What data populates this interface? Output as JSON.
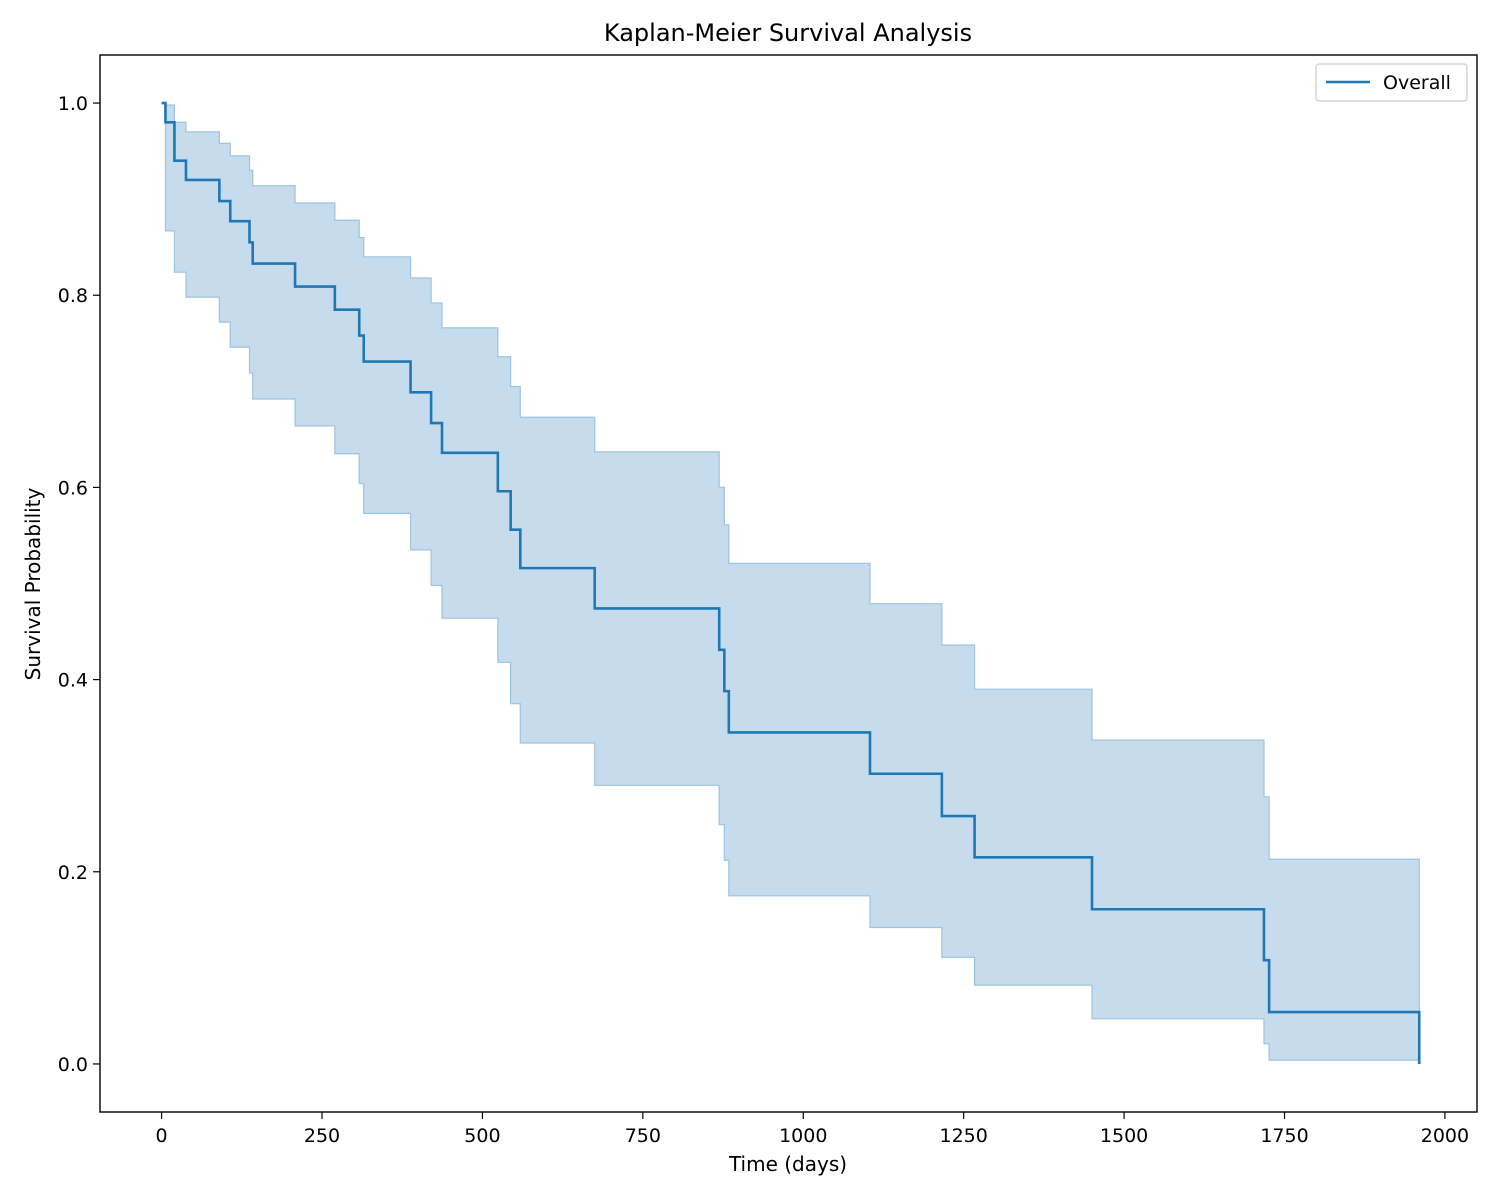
{
  "chart_data": {
    "type": "line",
    "title": "Kaplan-Meier Survival Analysis",
    "xlabel": "Time (days)",
    "ylabel": "Survival Probability",
    "xlim": [
      -96,
      2050
    ],
    "ylim": [
      -0.05,
      1.05
    ],
    "xticks": [
      0,
      250,
      500,
      750,
      1000,
      1250,
      1500,
      1750,
      2000
    ],
    "yticks": [
      0.0,
      0.2,
      0.4,
      0.6,
      0.8,
      1.0
    ],
    "xtick_labels": [
      "0",
      "250",
      "500",
      "750",
      "1000",
      "1250",
      "1500",
      "1750",
      "2000"
    ],
    "ytick_labels": [
      "0.0",
      "0.2",
      "0.4",
      "0.6",
      "0.8",
      "1.0"
    ],
    "grid": false,
    "legend_position": "top-right",
    "colors": {
      "line": "#1f77b4",
      "band": "#c6dcec",
      "band_edge": "#9dc3e0"
    },
    "series": [
      {
        "name": "Overall",
        "step": "post",
        "x": [
          0,
          6,
          20,
          38,
          90,
          107,
          137,
          142,
          208,
          270,
          308,
          315,
          388,
          420,
          437,
          524,
          544,
          559,
          675,
          869,
          877,
          884,
          1104,
          1216,
          1267,
          1450,
          1718,
          1726,
          1960
        ],
        "y": [
          1.0,
          0.98,
          0.94,
          0.92,
          0.898,
          0.877,
          0.855,
          0.833,
          0.809,
          0.785,
          0.758,
          0.731,
          0.699,
          0.667,
          0.636,
          0.596,
          0.556,
          0.516,
          0.474,
          0.431,
          0.388,
          0.345,
          0.302,
          0.258,
          0.215,
          0.161,
          0.108,
          0.054,
          0.0
        ]
      }
    ],
    "confidence_band": {
      "x": [
        0,
        6,
        20,
        38,
        90,
        107,
        137,
        142,
        208,
        270,
        308,
        315,
        388,
        420,
        437,
        524,
        544,
        559,
        675,
        869,
        877,
        884,
        1104,
        1216,
        1267,
        1450,
        1718,
        1726,
        1960
      ],
      "upper": [
        1.0,
        0.998,
        0.98,
        0.97,
        0.958,
        0.945,
        0.93,
        0.914,
        0.896,
        0.878,
        0.86,
        0.84,
        0.818,
        0.792,
        0.766,
        0.736,
        0.705,
        0.673,
        0.637,
        0.6,
        0.561,
        0.521,
        0.479,
        0.436,
        0.39,
        0.337,
        0.278,
        0.213,
        0.213
      ],
      "lower": [
        1.0,
        0.867,
        0.824,
        0.798,
        0.772,
        0.746,
        0.719,
        0.692,
        0.664,
        0.635,
        0.604,
        0.573,
        0.535,
        0.498,
        0.464,
        0.418,
        0.375,
        0.334,
        0.29,
        0.249,
        0.212,
        0.175,
        0.142,
        0.111,
        0.082,
        0.047,
        0.021,
        0.004,
        0.004
      ]
    }
  }
}
